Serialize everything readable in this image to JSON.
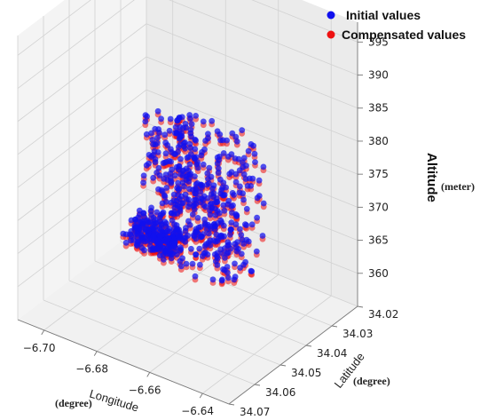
{
  "chart_data": {
    "type": "scatter",
    "projection": "3d",
    "xlabel": "Longitude",
    "xunit": "(degree)",
    "ylabel": "Latitude",
    "yunit": "(degree)",
    "zlabel": "Altitude",
    "zunit": "(meter)",
    "xlim": [
      -6.71,
      -6.63
    ],
    "ylim": [
      34.02,
      34.07
    ],
    "zlim": [
      355,
      398
    ],
    "x_ticks": [
      -6.7,
      -6.68,
      -6.66,
      -6.64
    ],
    "y_ticks": [
      34.02,
      34.03,
      34.04,
      34.05,
      34.06,
      34.07
    ],
    "z_ticks": [
      360,
      365,
      370,
      375,
      380,
      385,
      390,
      395
    ],
    "x_tick_labels": [
      "−6.70",
      "−6.68",
      "−6.66",
      "−6.64"
    ],
    "y_tick_labels": [
      "34.02",
      "34.03",
      "34.04",
      "34.05",
      "34.06",
      "34.07"
    ],
    "z_tick_labels": [
      "360",
      "365",
      "370",
      "375",
      "380",
      "385",
      "390",
      "395"
    ],
    "grid": true,
    "legend_position": "top-right",
    "colors": {
      "initial": "#1010ee",
      "compensated": "#ee1111"
    },
    "series": [
      {
        "name": "Initial values",
        "color": "#1010ee",
        "clusters": [
          {
            "x": [
              -6.707,
              -6.69
            ],
            "y": [
              34.025,
              34.033
            ],
            "z": [
              356,
              359
            ],
            "count": 190
          },
          {
            "x": [
              -6.69,
              -6.668
            ],
            "y": [
              34.029,
              34.036
            ],
            "z": [
              357,
              372
            ],
            "count": 70
          },
          {
            "x": [
              -6.682,
              -6.662
            ],
            "y": [
              34.046,
              34.052
            ],
            "z": [
              373,
              386
            ],
            "count": 70
          },
          {
            "x": [
              -6.666,
              -6.632
            ],
            "y": [
              34.052,
              34.067
            ],
            "z": [
              370,
              390
            ],
            "count": 320
          }
        ]
      },
      {
        "name": "Compensated values",
        "color": "#ee1111",
        "clusters": [
          {
            "x": [
              -6.707,
              -6.69
            ],
            "y": [
              34.025,
              34.033
            ],
            "z": [
              355.5,
              358.5
            ],
            "count": 190
          },
          {
            "x": [
              -6.69,
              -6.668
            ],
            "y": [
              34.029,
              34.036
            ],
            "z": [
              356.5,
              371.5
            ],
            "count": 70
          },
          {
            "x": [
              -6.682,
              -6.662
            ],
            "y": [
              34.046,
              34.052
            ],
            "z": [
              372.5,
              385.5
            ],
            "count": 70
          },
          {
            "x": [
              -6.666,
              -6.632
            ],
            "y": [
              34.052,
              34.067
            ],
            "z": [
              369.5,
              389.5
            ],
            "count": 320
          }
        ]
      }
    ]
  }
}
